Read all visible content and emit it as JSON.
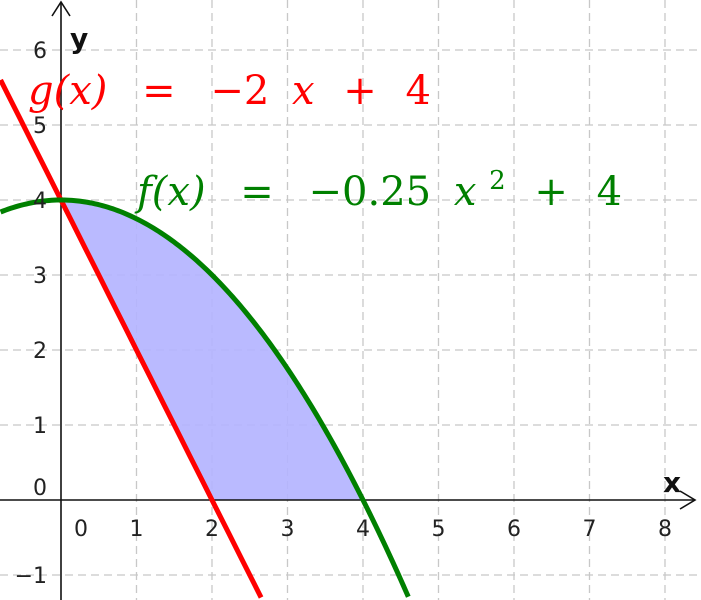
{
  "chart_data": {
    "type": "line",
    "xlabel": "x",
    "ylabel": "y",
    "xlim": [
      -0.8,
      8.5
    ],
    "ylim": [
      -1.35,
      6.6
    ],
    "grid": true,
    "x_ticks": [
      0,
      1,
      2,
      3,
      4,
      5,
      6,
      7,
      8
    ],
    "y_ticks": [
      -1,
      0,
      1,
      2,
      3,
      4,
      5,
      6
    ],
    "x_tick_labels": [
      "0",
      "1",
      "2",
      "3",
      "4",
      "5",
      "6",
      "7",
      "8"
    ],
    "y_tick_labels": [
      "−1",
      "0",
      "1",
      "2",
      "3",
      "4",
      "5",
      "6"
    ],
    "series": [
      {
        "name": "g(x) = −2 x + 4",
        "color": "#ff0000",
        "expression": {
          "kind": "linear",
          "slope": -2,
          "intercept": 4
        },
        "x": [
          -0.8,
          0,
          1,
          2,
          2.65
        ],
        "y": [
          5.6,
          4,
          2,
          0,
          -1.3
        ]
      },
      {
        "name": "f(x) = −0.25 x² + 4",
        "color": "#008000",
        "expression": {
          "kind": "quadratic",
          "a": -0.25,
          "b": 0,
          "c": 4
        },
        "x": [
          -0.8,
          0,
          1,
          2,
          3,
          4,
          4.6
        ],
        "y": [
          3.84,
          4,
          3.75,
          3,
          1.75,
          0,
          -1.29
        ]
      }
    ],
    "shaded_region": {
      "color": "#b3b3ff",
      "description_bounds": "between g(x) and f(x) from x=0, down to the x-axis, up to x=4",
      "x_from": 0,
      "x_to": 4,
      "upper": "f",
      "lower": "max(g, 0)"
    },
    "annotations": [
      {
        "text_parts": [
          "g(x)",
          "=",
          "−2",
          "x",
          "+",
          "4"
        ],
        "color": "#ff0000",
        "series": "g"
      },
      {
        "text_parts": [
          "f(x)",
          "=",
          "−0.25",
          "x",
          "2",
          "+",
          "4"
        ],
        "color": "#008000",
        "series": "f"
      }
    ]
  }
}
